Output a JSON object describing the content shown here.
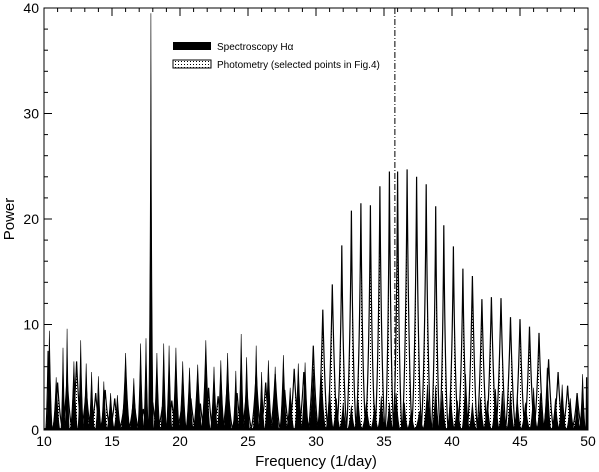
{
  "chart_data": {
    "type": "area",
    "xlabel": "Frequency (1/day)",
    "ylabel": "Power",
    "xlim": [
      10,
      50
    ],
    "ylim": [
      0,
      40
    ],
    "xticks": [
      "10",
      "15",
      "20",
      "25",
      "30",
      "35",
      "40",
      "45",
      "50"
    ],
    "yticks": [
      "0",
      "10",
      "20",
      "30",
      "40"
    ],
    "xtick_values": [
      10,
      15,
      20,
      25,
      30,
      35,
      40,
      45,
      50
    ],
    "ytick_values": [
      0,
      10,
      20,
      30,
      40
    ],
    "vertical_line_x": 35.8,
    "legend_position": "top-left",
    "series": [
      {
        "name": "Spectroscopy Hα",
        "fill": "solid-black",
        "color": "#000000",
        "peaks": [
          [
            10.0,
            4.5
          ],
          [
            10.4,
            9.4
          ],
          [
            10.9,
            5.0
          ],
          [
            11.4,
            7.8
          ],
          [
            11.7,
            9.6
          ],
          [
            12.2,
            6.5
          ],
          [
            12.7,
            8.5
          ],
          [
            13.1,
            6.3
          ],
          [
            13.5,
            5.5
          ],
          [
            14.0,
            5.1
          ],
          [
            14.4,
            4.6
          ],
          [
            14.9,
            3.5
          ],
          [
            15.4,
            3.3
          ],
          [
            16.0,
            7.3
          ],
          [
            16.6,
            4.9
          ],
          [
            17.1,
            8.2
          ],
          [
            17.5,
            8.7
          ],
          [
            17.86,
            39.5
          ],
          [
            18.3,
            7.3
          ],
          [
            18.8,
            8.2
          ],
          [
            19.2,
            8.0
          ],
          [
            19.7,
            7.8
          ],
          [
            20.2,
            6.5
          ],
          [
            20.7,
            5.9
          ],
          [
            21.3,
            6.2
          ],
          [
            21.9,
            8.5
          ],
          [
            22.5,
            6.0
          ],
          [
            23.0,
            6.6
          ],
          [
            23.5,
            7.3
          ],
          [
            24.1,
            5.6
          ],
          [
            24.5,
            9.1
          ],
          [
            24.9,
            6.9
          ],
          [
            25.6,
            8.0
          ],
          [
            26.0,
            5.5
          ],
          [
            26.5,
            6.6
          ],
          [
            27.0,
            6.0
          ],
          [
            27.6,
            7.1
          ],
          [
            28.1,
            4.0
          ],
          [
            28.7,
            6.3
          ],
          [
            29.2,
            6.4
          ],
          [
            29.8,
            5.8
          ],
          [
            30.4,
            5.3
          ],
          [
            31.0,
            4.2
          ],
          [
            31.5,
            3.0
          ],
          [
            32.0,
            2.6
          ],
          [
            32.6,
            2.3
          ],
          [
            33.1,
            2.8
          ],
          [
            33.7,
            2.6
          ],
          [
            34.3,
            2.4
          ],
          [
            34.8,
            3.2
          ],
          [
            35.4,
            2.6
          ],
          [
            35.9,
            3.5
          ],
          [
            36.5,
            2.6
          ],
          [
            37.0,
            2.0
          ],
          [
            37.6,
            1.8
          ],
          [
            38.2,
            4.3
          ],
          [
            38.8,
            4.2
          ],
          [
            39.3,
            3.6
          ],
          [
            39.9,
            3.5
          ],
          [
            40.4,
            2.8
          ],
          [
            41.0,
            5.3
          ],
          [
            41.5,
            2.6
          ],
          [
            42.1,
            3.1
          ],
          [
            42.6,
            2.8
          ],
          [
            43.2,
            3.9
          ],
          [
            43.7,
            3.7
          ],
          [
            44.3,
            3.7
          ],
          [
            44.8,
            3.1
          ],
          [
            45.4,
            2.6
          ],
          [
            46.0,
            4.0
          ],
          [
            46.5,
            3.5
          ],
          [
            47.0,
            5.9
          ],
          [
            47.6,
            3.0
          ],
          [
            48.1,
            4.3
          ],
          [
            48.7,
            3.0
          ],
          [
            49.2,
            3.1
          ],
          [
            49.6,
            5.3
          ],
          [
            50.0,
            3.6
          ]
        ]
      },
      {
        "name": "Photometry (selected points in Fig.4)",
        "fill": "dotted",
        "color": "#ffffff",
        "peaks": [
          [
            10.3,
            7.5
          ],
          [
            11.0,
            4.5
          ],
          [
            11.7,
            5.0
          ],
          [
            12.4,
            6.5
          ],
          [
            13.1,
            4.0
          ],
          [
            13.8,
            3.5
          ],
          [
            14.5,
            3.8
          ],
          [
            15.2,
            3.0
          ],
          [
            15.9,
            2.5
          ],
          [
            16.6,
            3.2
          ],
          [
            17.3,
            2.0
          ],
          [
            18.0,
            2.6
          ],
          [
            18.7,
            2.2
          ],
          [
            19.4,
            2.8
          ],
          [
            20.1,
            2.0
          ],
          [
            20.8,
            3.0
          ],
          [
            21.5,
            2.5
          ],
          [
            22.1,
            4.0
          ],
          [
            22.8,
            3.2
          ],
          [
            23.5,
            5.0
          ],
          [
            24.2,
            3.5
          ],
          [
            24.9,
            4.0
          ],
          [
            25.6,
            5.5
          ],
          [
            26.3,
            4.5
          ],
          [
            27.0,
            5.3
          ],
          [
            27.7,
            3.8
          ],
          [
            28.4,
            5.8
          ],
          [
            29.1,
            5.5
          ],
          [
            29.8,
            8.0
          ],
          [
            30.5,
            11.4
          ],
          [
            31.2,
            13.8
          ],
          [
            31.9,
            17.5
          ],
          [
            32.6,
            20.8
          ],
          [
            33.3,
            21.5
          ],
          [
            34.0,
            21.3
          ],
          [
            34.7,
            23.1
          ],
          [
            35.4,
            24.5
          ],
          [
            36.0,
            24.5
          ],
          [
            36.7,
            24.7
          ],
          [
            37.4,
            24.0
          ],
          [
            38.1,
            23.3
          ],
          [
            38.8,
            21.2
          ],
          [
            39.4,
            19.4
          ],
          [
            40.1,
            17.4
          ],
          [
            40.8,
            15.3
          ],
          [
            41.5,
            14.6
          ],
          [
            42.2,
            12.4
          ],
          [
            42.9,
            12.6
          ],
          [
            43.6,
            12.5
          ],
          [
            44.3,
            10.7
          ],
          [
            45.0,
            10.5
          ],
          [
            45.7,
            9.8
          ],
          [
            46.4,
            9.2
          ],
          [
            47.1,
            6.7
          ],
          [
            47.8,
            5.5
          ],
          [
            48.5,
            4.2
          ],
          [
            49.2,
            3.5
          ],
          [
            49.9,
            5.0
          ]
        ]
      }
    ]
  }
}
